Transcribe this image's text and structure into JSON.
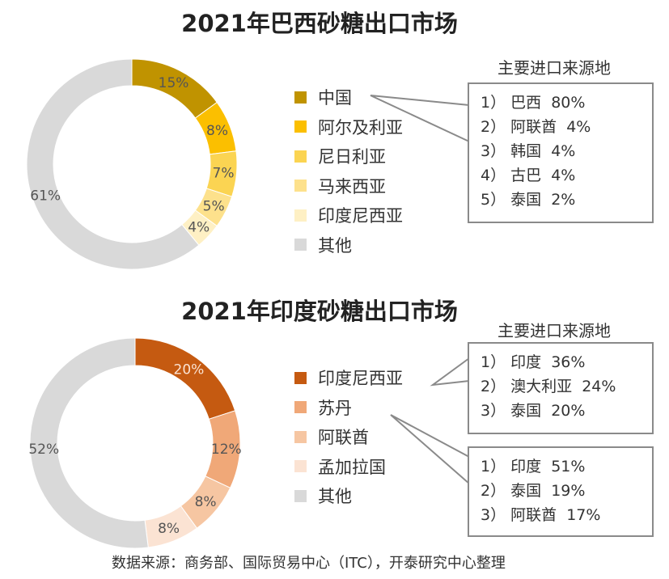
{
  "chart_data": [
    {
      "type": "pie",
      "title": "2021年巴西砂糖出口市场",
      "categories": [
        "中国",
        "阿尔及利亚",
        "尼日利亚",
        "马来西亚",
        "印度尼西亚",
        "其他"
      ],
      "values": [
        15,
        8,
        7,
        5,
        4,
        61
      ],
      "data_labels": [
        "15%",
        "8%",
        "7%",
        "5%",
        "4%",
        "61%"
      ],
      "colors": [
        "#c09300",
        "#fbbf00",
        "#fbd452",
        "#fde18c",
        "#fef0c4",
        "#d9d9d9"
      ],
      "donut": true,
      "legend": "right",
      "callout": {
        "title": "主要进口来源地",
        "for": "中国",
        "items": [
          "1） 巴西  80%",
          "2） 阿联酋  4%",
          "3） 韩国  4%",
          "4） 古巴  4%",
          "5） 泰国  2%"
        ]
      }
    },
    {
      "type": "pie",
      "title": "2021年印度砂糖出口市场",
      "categories": [
        "印度尼西亚",
        "苏丹",
        "阿联酋",
        "孟加拉国",
        "其他"
      ],
      "values": [
        20,
        12,
        8,
        8,
        52
      ],
      "data_labels": [
        "20%",
        "12%",
        "8%",
        "8%",
        "52%"
      ],
      "colors": [
        "#c55a11",
        "#f0a878",
        "#f6c6a2",
        "#fbe3d3",
        "#d9d9d9"
      ],
      "donut": true,
      "legend": "right",
      "callout_title": "主要进口来源地",
      "callouts": [
        {
          "for": "印度尼西亚",
          "items": [
            "1） 印度  36%",
            "2） 澳大利亚  24%",
            "3） 泰国  20%"
          ]
        },
        {
          "for": "苏丹",
          "items": [
            "1） 印度  51%",
            "2） 泰国  19%",
            "3） 阿联酋  17%"
          ]
        }
      ]
    }
  ],
  "source": "数据来源：商务部、国际贸易中心（ITC），开泰研究中心整理"
}
